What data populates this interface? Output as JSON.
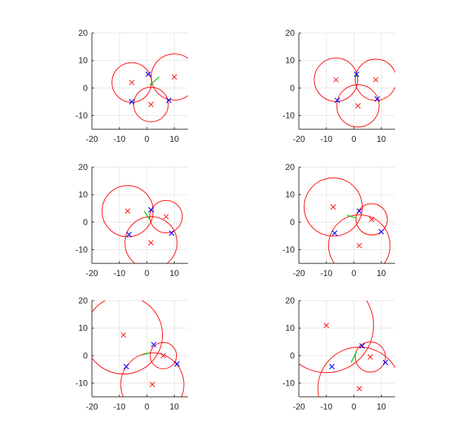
{
  "figure": {
    "background": "#ffffff",
    "axis_color": "#262626",
    "grid_color": "#e6e6e6",
    "circle_color": "#ff0000",
    "center_marker_color": "#ff0000",
    "point_marker_color": "#0000ff",
    "vector_color": "#00cc00"
  },
  "chart_data": [
    {
      "type": "scatter",
      "xlim": [
        -20,
        15
      ],
      "ylim": [
        -15,
        20
      ],
      "xticks": [
        "-20",
        "-10",
        "0",
        "10"
      ],
      "yticks": [
        "-10",
        "0",
        "10",
        "20"
      ],
      "grid": true,
      "centers": [
        [
          -5.5,
          2
        ],
        [
          10,
          4
        ],
        [
          1.5,
          -6
        ]
      ],
      "radii": [
        7.2,
        8.4,
        6.3
      ],
      "points": [
        [
          0.5,
          5
        ],
        [
          -5.5,
          -5
        ],
        [
          8,
          -4.5
        ]
      ],
      "vector": [
        [
          1,
          1
        ],
        [
          4.5,
          4
        ]
      ]
    },
    {
      "type": "scatter",
      "xlim": [
        -20,
        15
      ],
      "ylim": [
        -15,
        20
      ],
      "xticks": [
        "-20",
        "-10",
        "0",
        "10"
      ],
      "yticks": [
        "-10",
        "0",
        "10",
        "20"
      ],
      "grid": true,
      "centers": [
        [
          -6.5,
          3
        ],
        [
          8,
          3
        ],
        [
          1.5,
          -6.5
        ]
      ],
      "radii": [
        7.9,
        7.5,
        7.7
      ],
      "points": [
        [
          1,
          5
        ],
        [
          -6,
          -4.5
        ],
        [
          8.5,
          -4
        ]
      ],
      "vector": [
        [
          1,
          4
        ],
        [
          1,
          5.5
        ]
      ]
    },
    {
      "type": "scatter",
      "xlim": [
        -20,
        15
      ],
      "ylim": [
        -15,
        20
      ],
      "xticks": [
        "-20",
        "-10",
        "0",
        "10"
      ],
      "yticks": [
        "-10",
        "0",
        "10",
        "20"
      ],
      "grid": true,
      "centers": [
        [
          -7,
          4
        ],
        [
          7,
          2
        ],
        [
          1.5,
          -7.5
        ]
      ],
      "radii": [
        9.3,
        5.9,
        9.5
      ],
      "points": [
        [
          1.5,
          4.5
        ],
        [
          -6.5,
          -4.5
        ],
        [
          9,
          -4
        ]
      ],
      "vector": [
        [
          1,
          1
        ],
        [
          -1,
          4
        ]
      ]
    },
    {
      "type": "scatter",
      "xlim": [
        -20,
        15
      ],
      "ylim": [
        -15,
        20
      ],
      "xticks": [
        "-20",
        "-10",
        "0",
        "10"
      ],
      "yticks": [
        "-10",
        "0",
        "10",
        "20"
      ],
      "grid": true,
      "centers": [
        [
          -7.5,
          5.5
        ],
        [
          6.5,
          1
        ],
        [
          2,
          -8.5
        ]
      ],
      "radii": [
        10.6,
        5.7,
        11.2
      ],
      "points": [
        [
          2,
          4
        ],
        [
          -7,
          -4
        ],
        [
          10,
          -3.5
        ]
      ],
      "vector": [
        [
          1,
          1.5
        ],
        [
          -2.5,
          2.5
        ]
      ]
    },
    {
      "type": "scatter",
      "xlim": [
        -20,
        15
      ],
      "ylim": [
        -15,
        20
      ],
      "xticks": [
        "-20",
        "-10",
        "0",
        "10"
      ],
      "yticks": [
        "-10",
        "0",
        "10",
        "20"
      ],
      "grid": true,
      "centers": [
        [
          -8.5,
          7.5
        ],
        [
          6,
          0
        ],
        [
          2,
          -10.5
        ]
      ],
      "radii": [
        14.2,
        4.8,
        11.5
      ],
      "points": [
        [
          2.5,
          4
        ],
        [
          -7.5,
          -4
        ],
        [
          11,
          -3
        ]
      ],
      "vector": [
        [
          1,
          1
        ],
        [
          -1.5,
          0.3
        ]
      ]
    },
    {
      "type": "scatter",
      "xlim": [
        -20,
        15
      ],
      "ylim": [
        -15,
        20
      ],
      "xticks": [
        "-20",
        "-10",
        "0",
        "10"
      ],
      "yticks": [
        "-10",
        "0",
        "10",
        "20"
      ],
      "grid": true,
      "centers": [
        [
          -10,
          11
        ],
        [
          6,
          -0.5
        ],
        [
          2,
          -12
        ]
      ],
      "radii": [
        17.2,
        5.5,
        15.1
      ],
      "points": [
        [
          3,
          3.5
        ],
        [
          -8,
          -4
        ],
        [
          11.5,
          -2.5
        ]
      ],
      "vector": [
        [
          1,
          1.5
        ],
        [
          -1,
          -2.5
        ]
      ]
    }
  ]
}
